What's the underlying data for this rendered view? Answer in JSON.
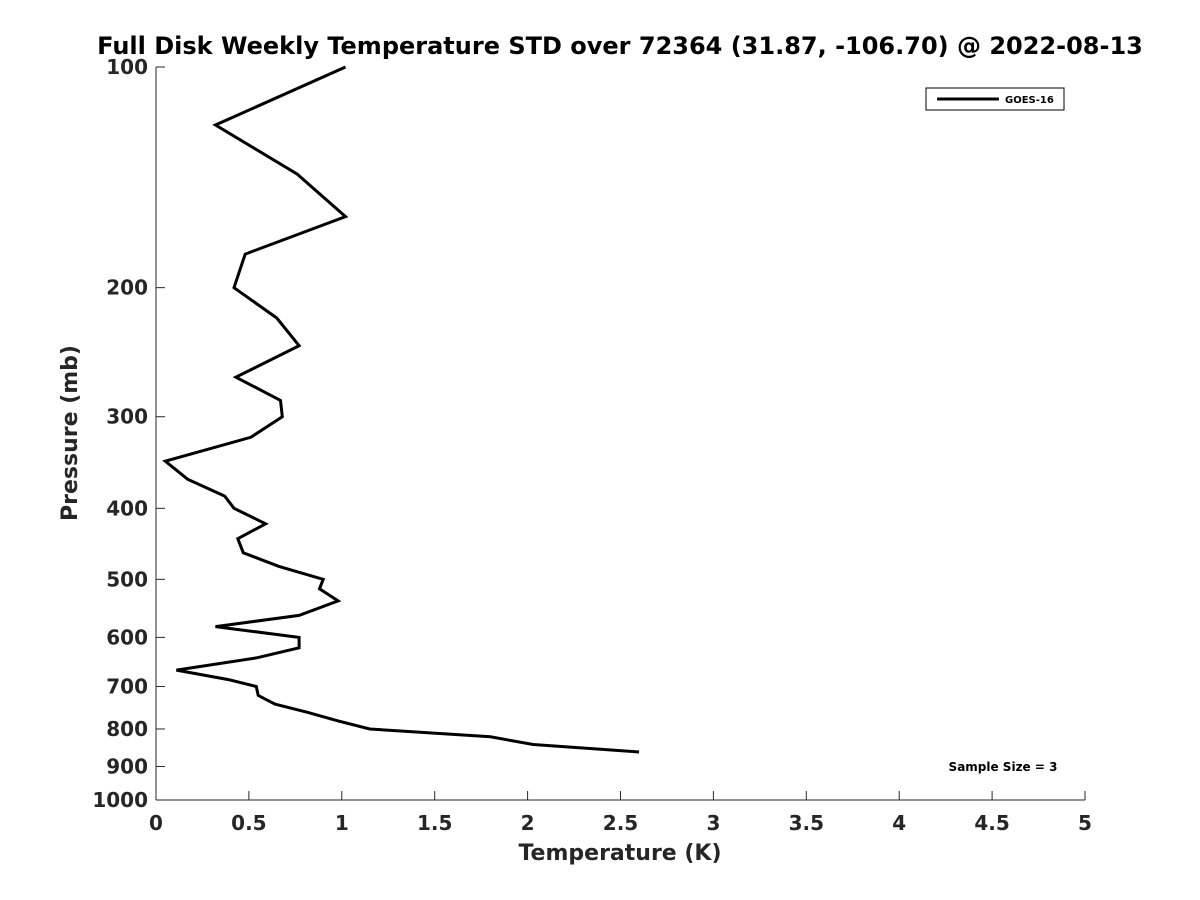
{
  "chart_data": {
    "type": "line",
    "title": "Full Disk Weekly Temperature STD over 72364 (31.87, -106.70) @ 2022-08-13",
    "xlabel": "Temperature (K)",
    "ylabel": "Pressure (mb)",
    "xlim": [
      0,
      5
    ],
    "ylim": [
      100,
      1000
    ],
    "yscale": "log",
    "yreversed": true,
    "xticks": [
      0,
      0.5,
      1,
      1.5,
      2,
      2.5,
      3,
      3.5,
      4,
      4.5,
      5
    ],
    "xtick_labels": [
      "0",
      "0.5",
      "1",
      "1.5",
      "2",
      "2.5",
      "3",
      "3.5",
      "4",
      "4.5",
      "5"
    ],
    "yticks": [
      100,
      200,
      300,
      400,
      500,
      600,
      700,
      800,
      900,
      1000
    ],
    "ytick_labels": [
      "100",
      "200",
      "300",
      "400",
      "500",
      "600",
      "700",
      "800",
      "900",
      "1000"
    ],
    "grid": false,
    "legend_position": "top-right",
    "series": [
      {
        "name": "GOES-16",
        "color": "#000000",
        "points": [
          [
            1.02,
            100
          ],
          [
            0.32,
            120
          ],
          [
            0.76,
            140
          ],
          [
            1.02,
            160
          ],
          [
            0.48,
            180
          ],
          [
            0.42,
            200
          ],
          [
            0.65,
            220
          ],
          [
            0.77,
            240
          ],
          [
            0.43,
            265
          ],
          [
            0.67,
            285
          ],
          [
            0.68,
            300
          ],
          [
            0.51,
            320
          ],
          [
            0.05,
            345
          ],
          [
            0.17,
            365
          ],
          [
            0.37,
            385
          ],
          [
            0.42,
            400
          ],
          [
            0.59,
            420
          ],
          [
            0.44,
            440
          ],
          [
            0.47,
            460
          ],
          [
            0.66,
            480
          ],
          [
            0.9,
            500
          ],
          [
            0.88,
            515
          ],
          [
            0.98,
            535
          ],
          [
            0.77,
            560
          ],
          [
            0.32,
            580
          ],
          [
            0.77,
            600
          ],
          [
            0.77,
            620
          ],
          [
            0.54,
            640
          ],
          [
            0.11,
            665
          ],
          [
            0.39,
            685
          ],
          [
            0.54,
            700
          ],
          [
            0.55,
            720
          ],
          [
            0.64,
            740
          ],
          [
            0.82,
            760
          ],
          [
            0.98,
            780
          ],
          [
            1.15,
            800
          ],
          [
            1.8,
            820
          ],
          [
            2.03,
            840
          ],
          [
            2.6,
            860
          ]
        ]
      }
    ],
    "annotation": "Sample Size = 3"
  }
}
